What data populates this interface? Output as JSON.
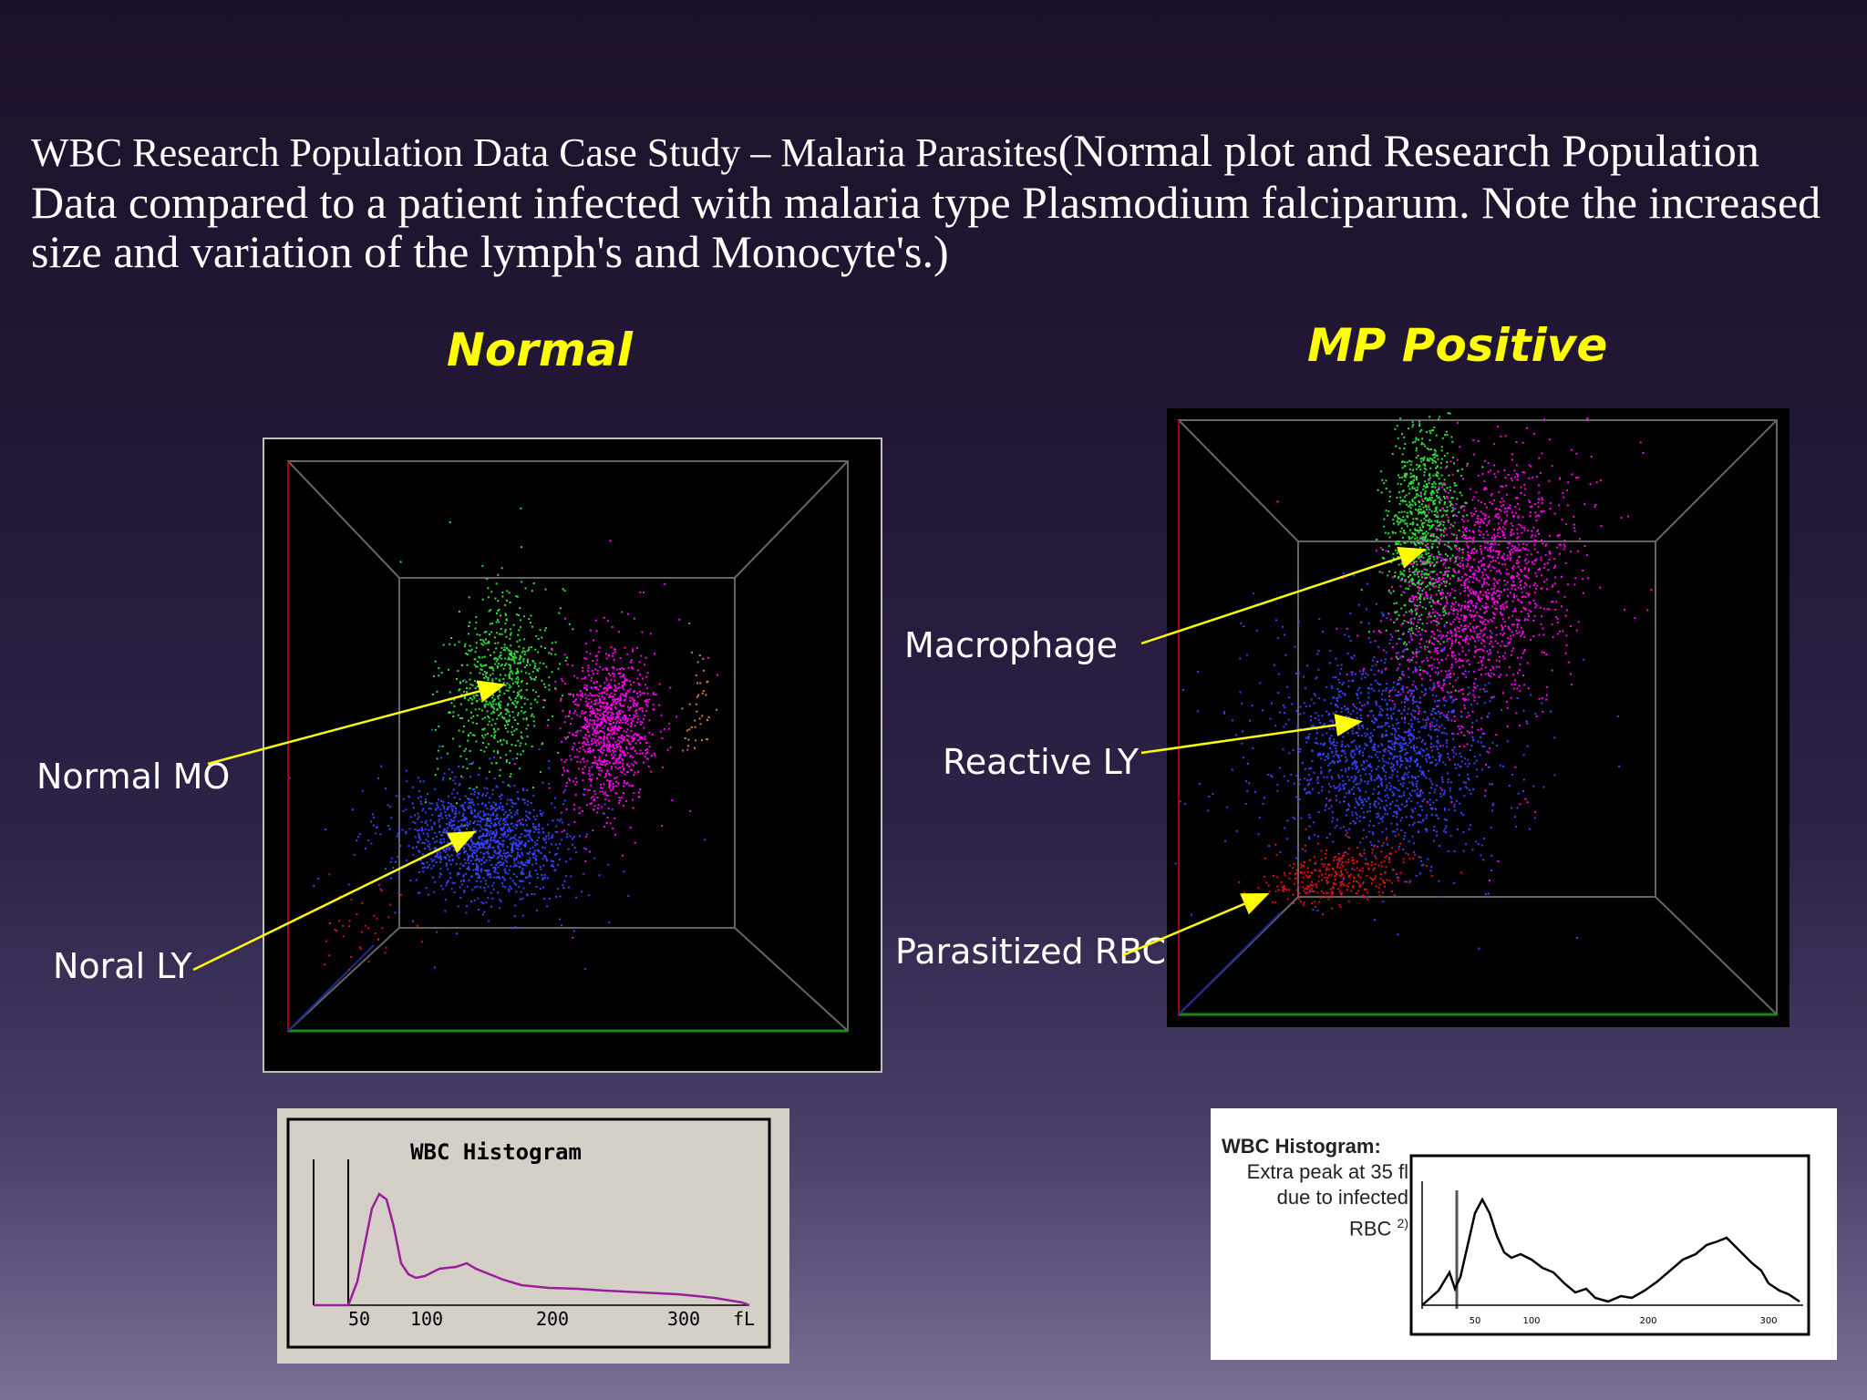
{
  "slide": {
    "title_serif_part": "WBC Research Population Data  Case Study – Malaria Parasites",
    "title_rest": "(Normal plot and Research Population Data compared to a patient infected with malaria type Plasmodium falciparum. Note the increased size and variation of the lymph's and Monocyte's.)"
  },
  "left_panel": {
    "heading": "Normal",
    "labels": {
      "mo": "Normal MO",
      "ly": "Noral LY"
    },
    "colors": {
      "mo": "#33dd44",
      "ly": "#3344ff",
      "ne": "#ff00ee",
      "eo": "#d08040",
      "rbc": "#dd1111"
    }
  },
  "right_panel": {
    "heading": "MP Positive",
    "labels": {
      "macrophage": "Macrophage",
      "reactive_ly": "Reactive LY",
      "parasitized_rbc": "Parasitized RBC"
    }
  },
  "histogram_left": {
    "title": "WBC Histogram",
    "ticks": [
      "50",
      "100",
      "200",
      "300"
    ],
    "unit": "fL",
    "line_color": "#9b1f9b"
  },
  "histogram_right": {
    "title": "WBC Histogram:",
    "note_lines": [
      "Extra peak at 35 fl",
      "due to infected",
      "RBC"
    ],
    "note_ref": "2)",
    "ticks": [
      "50",
      "100",
      "200",
      "300"
    ]
  },
  "annotation_color": "#ffff00"
}
